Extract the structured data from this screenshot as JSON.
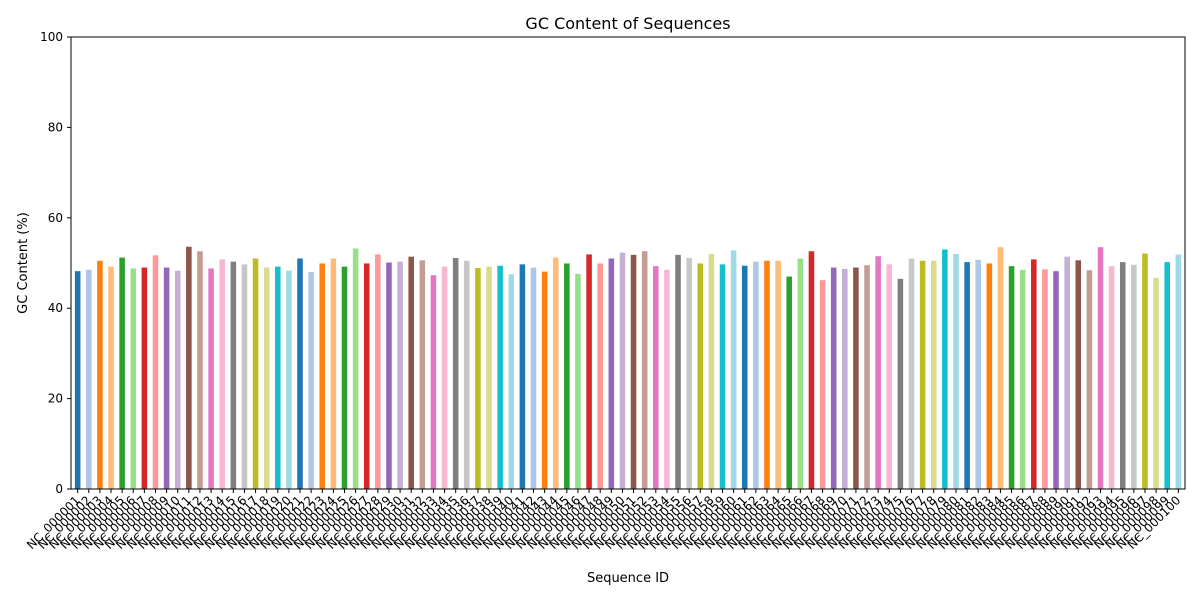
{
  "chart_data": {
    "type": "bar",
    "title": "GC Content of Sequences",
    "xlabel": "Sequence ID",
    "ylabel": "GC Content (%)",
    "ylim": [
      0,
      100
    ],
    "yticks": [
      0,
      20,
      40,
      60,
      80,
      100
    ],
    "grid": false,
    "legend": "none",
    "categories": [
      "NC_000001",
      "NC_000002",
      "NC_000003",
      "NC_000004",
      "NC_000005",
      "NC_000006",
      "NC_000007",
      "NC_000008",
      "NC_000009",
      "NC_000010",
      "NC_000011",
      "NC_000012",
      "NC_000013",
      "NC_000014",
      "NC_000015",
      "NC_000016",
      "NC_000017",
      "NC_000018",
      "NC_000019",
      "NC_000020",
      "NC_000021",
      "NC_000022",
      "NC_000023",
      "NC_000024",
      "NC_000025",
      "NC_000026",
      "NC_000027",
      "NC_000028",
      "NC_000029",
      "NC_000030",
      "NC_000031",
      "NC_000032",
      "NC_000033",
      "NC_000034",
      "NC_000035",
      "NC_000036",
      "NC_000037",
      "NC_000038",
      "NC_000039",
      "NC_000040",
      "NC_000041",
      "NC_000042",
      "NC_000043",
      "NC_000044",
      "NC_000045",
      "NC_000046",
      "NC_000047",
      "NC_000048",
      "NC_000049",
      "NC_000050",
      "NC_000051",
      "NC_000052",
      "NC_000053",
      "NC_000054",
      "NC_000055",
      "NC_000056",
      "NC_000057",
      "NC_000058",
      "NC_000059",
      "NC_000060",
      "NC_000061",
      "NC_000062",
      "NC_000063",
      "NC_000064",
      "NC_000065",
      "NC_000066",
      "NC_000067",
      "NC_000068",
      "NC_000069",
      "NC_000070",
      "NC_000071",
      "NC_000072",
      "NC_000073",
      "NC_000074",
      "NC_000075",
      "NC_000076",
      "NC_000077",
      "NC_000078",
      "NC_000079",
      "NC_000080",
      "NC_000081",
      "NC_000082",
      "NC_000083",
      "NC_000084",
      "NC_000085",
      "NC_000086",
      "NC_000087",
      "NC_000088",
      "NC_000089",
      "NC_000090",
      "NC_000091",
      "NC_000092",
      "NC_000093",
      "NC_000094",
      "NC_000095",
      "NC_000096",
      "NC_000097",
      "NC_000098",
      "NC_000099",
      "NC_000100"
    ],
    "values": [
      48.2,
      48.5,
      50.5,
      49.2,
      51.2,
      48.8,
      49.0,
      51.7,
      49.0,
      48.3,
      53.6,
      52.6,
      48.8,
      50.8,
      50.3,
      49.7,
      51.0,
      49.0,
      49.2,
      48.3,
      51.0,
      48.0,
      49.9,
      51.0,
      49.2,
      53.2,
      49.9,
      51.9,
      50.1,
      50.3,
      51.4,
      50.6,
      47.3,
      49.2,
      51.1,
      50.5,
      48.9,
      49.2,
      49.4,
      47.5,
      49.7,
      49.0,
      48.1,
      51.2,
      49.9,
      47.6,
      51.9,
      49.9,
      51.0,
      52.3,
      51.8,
      52.6,
      49.3,
      48.5,
      51.8,
      51.1,
      49.9,
      52.0,
      49.7,
      52.8,
      49.4,
      50.3,
      50.5,
      50.5,
      47.0,
      51.0,
      52.6,
      46.2,
      49.0,
      48.7,
      49.0,
      49.5,
      51.5,
      49.7,
      46.5,
      51.0,
      50.5,
      50.5,
      53.0,
      52.0,
      50.2,
      50.7,
      49.9,
      53.5,
      49.3,
      48.5,
      50.8,
      48.6,
      48.2,
      51.4,
      50.6,
      48.4,
      53.5,
      49.3,
      50.2,
      49.6,
      52.1,
      46.7,
      50.2,
      51.9
    ],
    "colors": [
      "#1f77b4",
      "#aec7e8",
      "#ff7f0e",
      "#ffbb78",
      "#2ca02c",
      "#98df8a",
      "#d62728",
      "#ff9896",
      "#9467bd",
      "#c5b0d5",
      "#8c564b",
      "#c49c94",
      "#e377c2",
      "#f7b6d2",
      "#7f7f7f",
      "#c7c7c7",
      "#bcbd22",
      "#dbdb8d",
      "#17becf",
      "#9edae5"
    ]
  }
}
